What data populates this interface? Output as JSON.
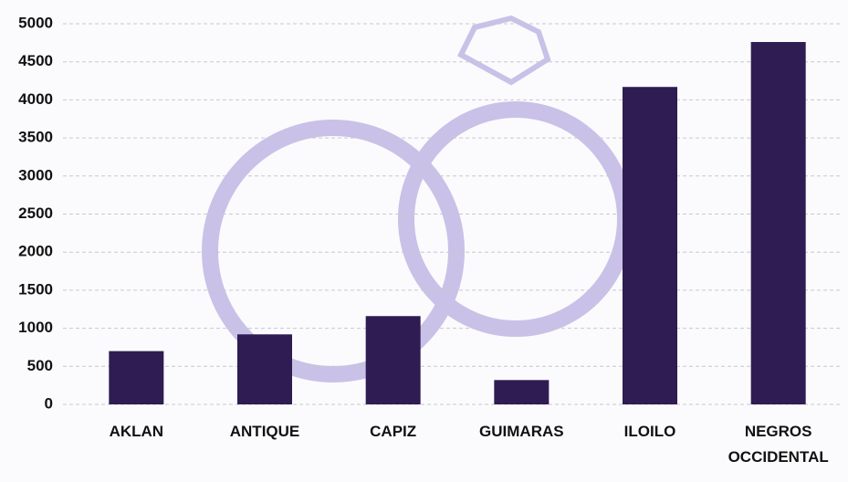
{
  "chart_data": {
    "type": "bar",
    "categories": [
      "AKLAN",
      "ANTIQUE",
      "CAPIZ",
      "GUIMARAS",
      "ILOILO",
      "NEGROS OCCIDENTAL"
    ],
    "values": [
      700,
      920,
      1160,
      320,
      4170,
      4760
    ],
    "color": "#2e1c52",
    "ylim": [
      0,
      5000
    ],
    "yticks": [
      0,
      500,
      1000,
      1500,
      2000,
      2500,
      3000,
      3500,
      4000,
      4500,
      5000
    ],
    "grid": true
  }
}
